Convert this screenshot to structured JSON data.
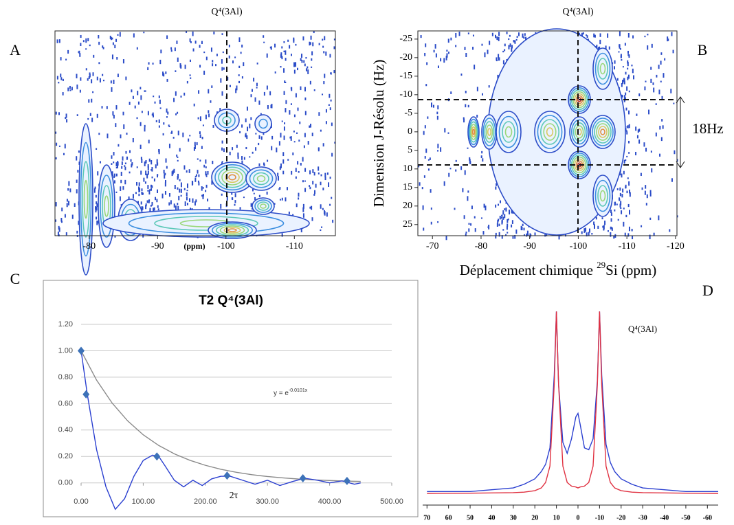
{
  "chart_data": [
    {
      "type": "contour",
      "panel_label": "A",
      "title": "Q⁴(3Al)",
      "x_label": "(ppm)",
      "xlim": [
        -75,
        -116
      ],
      "xticks": [
        -80,
        -90,
        -100,
        -110
      ]
    },
    {
      "type": "contour",
      "panel_label": "B",
      "title": "Q⁴(3Al)",
      "y_label": "Dimension J-Résolu (Hz)",
      "x_label": {
        "before": "Déplacement chimique ",
        "superscript": "29",
        "after": "Si (ppm)"
      },
      "annotation": "18Hz",
      "xlim": [
        -67,
        -120.3
      ],
      "xticks": [
        -70,
        -80,
        -90,
        -100,
        -110,
        -120
      ],
      "ylim": [
        28,
        -27.2
      ],
      "yticks": [
        -25,
        -20,
        -15,
        -10,
        -5,
        0,
        5,
        10,
        15,
        20,
        25
      ]
    },
    {
      "type": "line",
      "panel_label": "C",
      "title": "T2 Q⁴(3Al)",
      "x_label": "2τ",
      "equation": {
        "base": "y = e",
        "exponent": "-0.0101x"
      },
      "xlim": [
        0,
        500
      ],
      "ylim": [
        -0.22,
        1.2
      ],
      "xticks": [
        {
          "value": 0,
          "label": "0.00"
        },
        {
          "value": 100,
          "label": "100.00"
        },
        {
          "value": 200,
          "label": "200.00"
        },
        {
          "value": 300,
          "label": "300.00"
        },
        {
          "value": 400,
          "label": "400.00"
        },
        {
          "value": 500,
          "label": "500.00"
        }
      ],
      "yticks": [
        {
          "value": 0,
          "label": "0.00"
        },
        {
          "value": 0.2,
          "label": "0.20"
        },
        {
          "value": 0.4,
          "label": "0.40"
        },
        {
          "value": 0.6,
          "label": "0.60"
        },
        {
          "value": 0.8,
          "label": "0.80"
        },
        {
          "value": 1,
          "label": "1.00"
        },
        {
          "value": 1.2,
          "label": "1.20"
        }
      ],
      "grid": true,
      "series": [
        {
          "style": "line",
          "color": "#8a8a8a",
          "x": [
            0,
            25,
            50,
            75,
            100,
            125,
            150,
            175,
            200,
            225,
            250,
            275,
            300,
            325,
            350,
            375,
            400,
            425,
            450
          ],
          "values": [
            1,
            0.777,
            0.604,
            0.469,
            0.364,
            0.283,
            0.22,
            0.171,
            0.133,
            0.103,
            0.08,
            0.062,
            0.048,
            0.038,
            0.029,
            0.023,
            0.018,
            0.014,
            0.011
          ]
        },
        {
          "style": "line",
          "color": "#2a3fd0",
          "x": [
            0,
            10,
            25,
            40,
            55,
            70,
            85,
            100,
            115,
            125,
            135,
            150,
            165,
            180,
            195,
            210,
            225,
            240,
            260,
            280,
            300,
            320,
            340,
            360,
            380,
            400,
            420,
            440,
            450
          ],
          "values": [
            1,
            0.67,
            0.25,
            -0.03,
            -0.2,
            -0.12,
            0.05,
            0.17,
            0.21,
            0.2,
            0.13,
            0.02,
            -0.03,
            0.02,
            -0.02,
            0.03,
            0.05,
            0.05,
            0.02,
            -0.01,
            0.02,
            -0.02,
            0.01,
            0.035,
            0.02,
            0,
            0.015,
            -0.01,
            0
          ]
        },
        {
          "style": "markers",
          "color": "#3d72b8",
          "x": [
            0,
            8,
            122,
            235,
            357,
            428
          ],
          "values": [
            1,
            0.67,
            0.2,
            0.055,
            0.035,
            0.015
          ]
        }
      ]
    },
    {
      "type": "spectrum",
      "panel_label": "D",
      "title": "Q⁴(3Al)",
      "xlim": [
        72,
        -65
      ],
      "ylim": [
        0,
        1.05
      ],
      "xticks": [
        70,
        60,
        50,
        40,
        30,
        20,
        10,
        0,
        -10,
        -20,
        -30,
        -40,
        -50,
        -60
      ],
      "series": [
        {
          "color": "#2a3fd0",
          "x": [
            70,
            50,
            30,
            25,
            20,
            17,
            15,
            13,
            11,
            10,
            9,
            7,
            5,
            3,
            1,
            0,
            -1,
            -3,
            -5,
            -7,
            -9,
            -10,
            -11,
            -13,
            -15,
            -17,
            -20,
            -25,
            -30,
            -50,
            -65
          ],
          "values": [
            0.01,
            0.01,
            0.03,
            0.05,
            0.08,
            0.12,
            0.16,
            0.25,
            0.65,
            1,
            0.6,
            0.28,
            0.22,
            0.3,
            0.42,
            0.44,
            0.38,
            0.25,
            0.24,
            0.3,
            0.62,
            1,
            0.65,
            0.27,
            0.17,
            0.12,
            0.08,
            0.05,
            0.03,
            0.01,
            0.01
          ]
        },
        {
          "color": "#e03040",
          "x": [
            70,
            50,
            30,
            25,
            20,
            17,
            15,
            13,
            11,
            10,
            9,
            7,
            5,
            3,
            1,
            0,
            -1,
            -3,
            -5,
            -7,
            -9,
            -10,
            -11,
            -13,
            -15,
            -17,
            -20,
            -25,
            -30,
            -50,
            -65
          ],
          "values": [
            0,
            0.001,
            0.004,
            0.007,
            0.015,
            0.03,
            0.06,
            0.15,
            0.6,
            1,
            0.6,
            0.15,
            0.06,
            0.04,
            0.035,
            0.03,
            0.035,
            0.04,
            0.06,
            0.15,
            0.6,
            1,
            0.6,
            0.15,
            0.06,
            0.03,
            0.015,
            0.007,
            0.004,
            0.001,
            0
          ]
        }
      ]
    }
  ]
}
